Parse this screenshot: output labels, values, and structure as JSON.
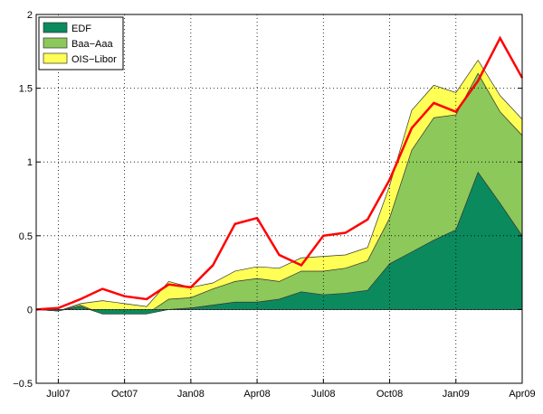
{
  "chart_data": {
    "type": "area",
    "title": "",
    "xlabel": "",
    "ylabel": "",
    "x": [
      "Jun07",
      "Jul07",
      "Aug07",
      "Sep07",
      "Oct07",
      "Nov07",
      "Dec07",
      "Jan08",
      "Feb08",
      "Mar08",
      "Apr08",
      "May08",
      "Jun08",
      "Jul08",
      "Aug08",
      "Sep08",
      "Oct08",
      "Nov08",
      "Dec08",
      "Jan09",
      "Feb09",
      "Mar09",
      "Apr09"
    ],
    "xticks": [
      "Jul07",
      "Oct07",
      "Jan08",
      "Apr08",
      "Jul08",
      "Oct08",
      "Jan09",
      "Apr09"
    ],
    "yticks": [
      "-0.5",
      "0",
      "0.5",
      "1",
      "1.5",
      "2"
    ],
    "ylim": [
      -0.5,
      2
    ],
    "grid": true,
    "legend_position": "top-left",
    "stacked": true,
    "series": [
      {
        "name": "EDF",
        "color": "#0b8a5e",
        "values": [
          0,
          -0.01,
          0.02,
          -0.03,
          -0.03,
          -0.03,
          0.0,
          0.01,
          0.03,
          0.05,
          0.05,
          0.07,
          0.12,
          0.1,
          0.11,
          0.13,
          0.31,
          0.39,
          0.47,
          0.54,
          0.93,
          0.72,
          0.5
        ]
      },
      {
        "name": "Baa−Aaa",
        "color": "#8cc85a",
        "values": [
          0,
          0,
          0.01,
          0,
          0,
          0,
          0.07,
          0.07,
          0.11,
          0.14,
          0.16,
          0.12,
          0.14,
          0.16,
          0.17,
          0.2,
          0.31,
          0.69,
          0.83,
          0.78,
          0.67,
          0.62,
          0.68
        ]
      },
      {
        "name": "OIS−Libor",
        "color": "#ffff55",
        "values": [
          0,
          0,
          0.01,
          0.09,
          0.07,
          0.05,
          0.12,
          0.07,
          0.04,
          0.07,
          0.08,
          0.09,
          0.09,
          0.1,
          0.09,
          0.09,
          0.22,
          0.27,
          0.22,
          0.15,
          0.09,
          0.11,
          0.11
        ]
      }
    ],
    "line": {
      "color": "#ff0000",
      "values": [
        0,
        0.01,
        0.07,
        0.14,
        0.09,
        0.07,
        0.17,
        0.15,
        0.3,
        0.58,
        0.62,
        0.37,
        0.3,
        0.5,
        0.52,
        0.61,
        0.88,
        1.23,
        1.4,
        1.34,
        1.55,
        1.84,
        1.57
      ]
    }
  }
}
